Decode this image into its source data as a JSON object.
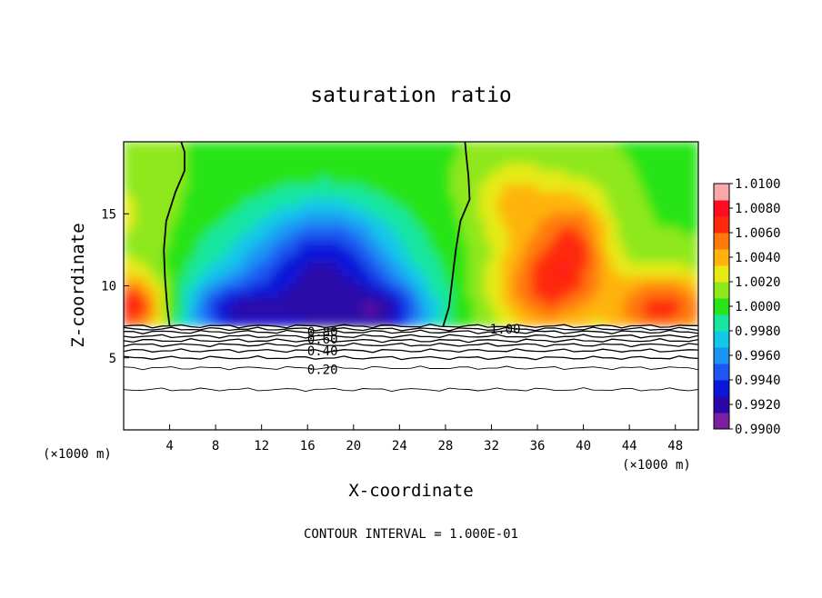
{
  "chart_data": {
    "type": "heatmap",
    "title": "saturation ratio",
    "xlabel": "X-coordinate",
    "ylabel": "Z-coordinate",
    "x_unit_left": "(×1000 m)",
    "x_unit_right": "(×1000 m)",
    "xlim": [
      0,
      50
    ],
    "ylim": [
      0,
      20
    ],
    "x_ticks": [
      "4",
      "8",
      "12",
      "16",
      "20",
      "24",
      "28",
      "32",
      "36",
      "40",
      "44",
      "48"
    ],
    "x_tick_values": [
      4,
      8,
      12,
      16,
      20,
      24,
      28,
      32,
      36,
      40,
      44,
      48
    ],
    "y_ticks": [
      "5",
      "10",
      "15"
    ],
    "y_tick_values": [
      5,
      10,
      15
    ],
    "footer": "CONTOUR INTERVAL = 1.000E-01",
    "colorbar": {
      "vmin": 0.99,
      "vmax": 1.01,
      "labels": [
        "1.0100",
        "1.0080",
        "1.0060",
        "1.0040",
        "1.0020",
        "1.0000",
        "0.9980",
        "0.9960",
        "0.9940",
        "0.9920",
        "0.9900"
      ],
      "label_values": [
        1.01,
        1.008,
        1.006,
        1.004,
        1.002,
        1.0,
        0.998,
        0.996,
        0.994,
        0.992,
        0.99
      ]
    },
    "contour_labels": [
      {
        "text": "1.00",
        "x": 33.2,
        "z": 7.0
      },
      {
        "text": "0.80",
        "x": 17.3,
        "z": 6.8
      },
      {
        "text": "0.60",
        "x": 17.3,
        "z": 6.3
      },
      {
        "text": "0.40",
        "x": 17.3,
        "z": 5.5
      },
      {
        "text": "0.20",
        "x": 17.3,
        "z": 4.2
      }
    ],
    "contour_levels_z": [
      7.2,
      7.0,
      6.8,
      6.5,
      6.2,
      5.9,
      5.5,
      5.0,
      4.3,
      2.8
    ],
    "unity_contour_left": [
      [
        4.0,
        7.2
      ],
      [
        3.8,
        8.5
      ],
      [
        3.6,
        10.5
      ],
      [
        3.5,
        12.5
      ],
      [
        3.7,
        14.5
      ],
      [
        4.5,
        16.5
      ],
      [
        5.3,
        18.0
      ],
      [
        5.3,
        19.3
      ],
      [
        5.0,
        20.0
      ]
    ],
    "unity_contour_right": [
      [
        27.8,
        7.2
      ],
      [
        28.3,
        8.5
      ],
      [
        28.6,
        10.5
      ],
      [
        28.9,
        12.5
      ],
      [
        29.3,
        14.5
      ],
      [
        30.1,
        16.0
      ],
      [
        30.0,
        17.6
      ],
      [
        29.8,
        19.1
      ],
      [
        29.7,
        20.0
      ]
    ],
    "ground_z": 7.2
  }
}
